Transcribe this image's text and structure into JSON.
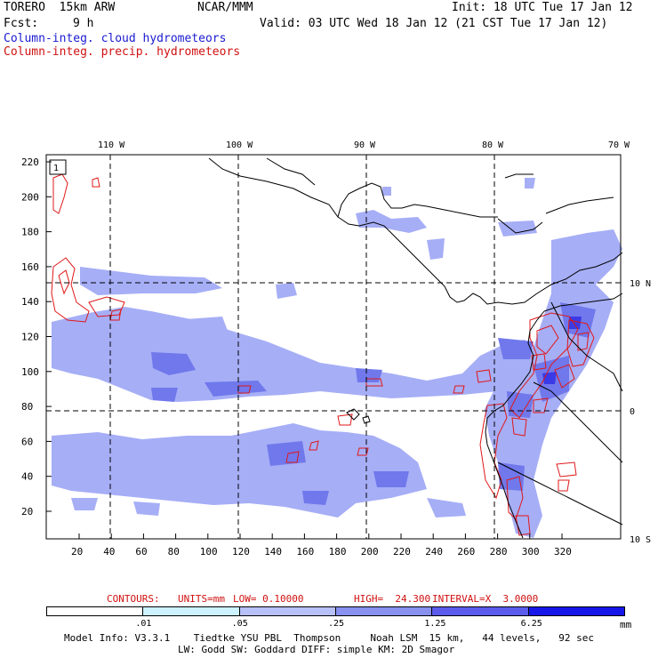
{
  "header": {
    "model": "TORERO  15km ARW",
    "org": "NCAR/MMM",
    "init": "Init: 18 UTC Tue 17 Jan 12",
    "fcst_label": "Fcst:",
    "fcst_value": "9 h",
    "valid": "Valid: 03 UTC Wed 18 Jan 12 (21 CST Tue 17 Jan 12)",
    "field1": "Column-integ. cloud hydrometeors",
    "field2": "Column-integ. precip. hydrometeors"
  },
  "map": {
    "top_lon_labels": [
      "110 W",
      "100 W",
      "90 W",
      "80 W",
      "70 W"
    ],
    "right_lat_labels": [
      "10 N",
      "0",
      "10 S"
    ],
    "y_ticks": [
      "220",
      "200",
      "180",
      "160",
      "140",
      "120",
      "100",
      "80",
      "60",
      "40",
      "20"
    ],
    "x_ticks": [
      "20",
      "40",
      "60",
      "80",
      "100",
      "120",
      "140",
      "160",
      "180",
      "200",
      "220",
      "240",
      "260",
      "280",
      "300",
      "320"
    ],
    "box_label": "1",
    "colors": {
      "cloud_light": "#cfefff",
      "cloud_mid": "#9aa4f4",
      "cloud_dark": "#6a70ec",
      "cloud_deep": "#1a1ae6",
      "precip": "#e01818",
      "coast": "#000000"
    }
  },
  "contours_line": {
    "contours": "CONTOURS:",
    "units": "UNITS=mm",
    "low": "LOW= 0.10000",
    "high": "HIGH=  24.300",
    "interval": "INTERVAL=X  3.0000"
  },
  "legend": {
    "bins": [
      {
        "color": "#ffffff"
      },
      {
        "color": "#ccf3ff"
      },
      {
        "color": "#b8c0f8"
      },
      {
        "color": "#8890f0"
      },
      {
        "color": "#5c5cec"
      },
      {
        "color": "#1616e8"
      }
    ],
    "ticks": [
      ".01",
      ".05",
      ".25",
      "1.25",
      "6.25"
    ],
    "unit": "mm"
  },
  "footer": {
    "line1": "Model Info: V3.3.1    Tiedtke YSU PBL  Thompson     Noah LSM  15 km,   44 levels,   92 sec",
    "line2": "LW: Godd SW: Goddard DIFF: simple KM: 2D Smagor"
  }
}
